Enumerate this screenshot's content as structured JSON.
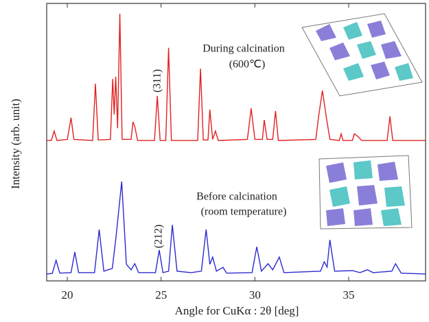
{
  "chart_data": {
    "type": "line",
    "xlabel": "Angle for CuKα : 2θ [deg]",
    "ylabel": "Intensity (arb. unit)",
    "xlim": [
      18.9,
      39.1
    ],
    "ylim": [
      0,
      100
    ],
    "xticks": [
      20,
      25,
      30,
      35
    ],
    "annotations": [
      "During  calcination",
      "(600℃)",
      "(311)",
      "Before calcination",
      "(room temperature)",
      "(212)"
    ],
    "series": [
      {
        "color": "#e02020",
        "x": [
          18.9,
          19.15,
          19.3,
          19.45,
          20.0,
          20.2,
          20.35,
          21.35,
          21.5,
          21.65,
          22.3,
          22.42,
          22.5,
          22.58,
          22.68,
          22.8,
          22.92,
          23.4,
          23.5,
          23.6,
          23.75,
          24.65,
          24.8,
          24.95,
          25.25,
          25.4,
          25.55,
          26.95,
          27.1,
          27.25,
          27.5,
          27.6,
          27.75,
          27.9,
          28.05,
          29.6,
          29.8,
          30.0,
          30.4,
          30.5,
          30.65,
          30.95,
          31.1,
          31.25,
          33.25,
          33.4,
          33.6,
          33.8,
          34.0,
          34.5,
          34.6,
          34.7,
          35.2,
          35.3,
          35.5,
          35.7,
          37.05,
          37.2,
          37.35,
          39.1
        ],
        "values": [
          50.6,
          50.6,
          54,
          50.6,
          51,
          58.8,
          51,
          50.6,
          71.1,
          50.8,
          51,
          72.8,
          60,
          73.6,
          55,
          96.3,
          51,
          51,
          57.3,
          55.6,
          50.6,
          50.6,
          66.7,
          50.6,
          50.6,
          84.0,
          50.6,
          50.6,
          76.5,
          50.8,
          50.8,
          61.7,
          51,
          54,
          50.6,
          51,
          62.2,
          51,
          51,
          58,
          51,
          51,
          61.2,
          50.6,
          51,
          59.3,
          68.6,
          59.3,
          51,
          50.6,
          53,
          50.6,
          50.6,
          53,
          52,
          50.6,
          50.6,
          59.3,
          50.6,
          50.6
        ]
      },
      {
        "color": "#2a2ad0",
        "x": [
          18.9,
          19.2,
          19.4,
          19.6,
          20.2,
          20.4,
          20.6,
          21.45,
          21.7,
          21.95,
          22.4,
          22.6,
          22.9,
          23.15,
          23.4,
          23.6,
          23.8,
          24.7,
          24.9,
          25.1,
          25.4,
          25.6,
          25.85,
          26.6,
          27.15,
          27.4,
          27.6,
          27.75,
          27.95,
          28.3,
          28.5,
          29.85,
          30.1,
          30.35,
          30.7,
          30.95,
          31.3,
          31.55,
          33.5,
          33.7,
          33.85,
          34.0,
          34.25,
          35.2,
          35.6,
          36.0,
          36.3,
          37.3,
          37.5,
          37.8,
          39.1
        ],
        "values": [
          2.5,
          2.7,
          7.4,
          2.8,
          3,
          10.4,
          3,
          3,
          18.5,
          3.5,
          4.5,
          16,
          35.8,
          6,
          4,
          6.2,
          3,
          3,
          11.1,
          3,
          3.5,
          20.2,
          3.5,
          3,
          3.5,
          18.5,
          6,
          8.6,
          3.5,
          4.9,
          2.8,
          3,
          12.3,
          3.5,
          6.2,
          4,
          8.6,
          3,
          3.5,
          6.9,
          5,
          14.8,
          3.5,
          3.7,
          3,
          4,
          3,
          3.5,
          6.2,
          2.8,
          2.5
        ]
      }
    ]
  }
}
